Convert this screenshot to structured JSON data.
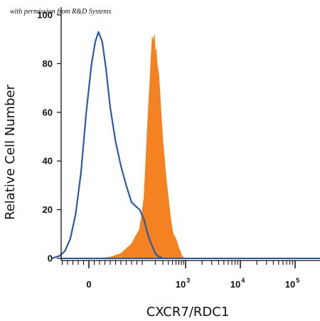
{
  "watermark": "with permission from R&D Systems",
  "chart_data": {
    "type": "area",
    "title": "",
    "xlabel": "CXCR7/RDC1",
    "ylabel": "Relative Cell Number",
    "x_scale": "biexponential",
    "x_tick_labels": [
      {
        "value": 0,
        "base": "0",
        "exp": ""
      },
      {
        "value": 1000,
        "base": "10",
        "exp": "3"
      },
      {
        "value": 10000,
        "base": "10",
        "exp": "4"
      },
      {
        "value": 100000,
        "base": "10",
        "exp": "5"
      }
    ],
    "y_ticks": [
      0,
      20,
      40,
      60,
      80,
      100
    ],
    "ylim": [
      0,
      100
    ],
    "grid": false,
    "legend": "none",
    "series": [
      {
        "style": "filled",
        "color": "#f58220",
        "points": [
          [
            20,
            0
          ],
          [
            40,
            0.5
          ],
          [
            60,
            2
          ],
          [
            80,
            6
          ],
          [
            95,
            12
          ],
          [
            110,
            25
          ],
          [
            125,
            45
          ],
          [
            140,
            63
          ],
          [
            150,
            72
          ],
          [
            160,
            83
          ],
          [
            170,
            91
          ],
          [
            180,
            89
          ],
          [
            190,
            92
          ],
          [
            200,
            85
          ],
          [
            210,
            86
          ],
          [
            220,
            80
          ],
          [
            240,
            76
          ],
          [
            260,
            66
          ],
          [
            280,
            56
          ],
          [
            300,
            48
          ],
          [
            330,
            40
          ],
          [
            360,
            32
          ],
          [
            400,
            25
          ],
          [
            440,
            18
          ],
          [
            480,
            13
          ],
          [
            520,
            10
          ],
          [
            560,
            9
          ],
          [
            600,
            8
          ],
          [
            650,
            6
          ],
          [
            700,
            4
          ],
          [
            750,
            3
          ],
          [
            800,
            1.5
          ],
          [
            850,
            0.8
          ],
          [
            900,
            0.3
          ],
          [
            950,
            0
          ]
        ]
      },
      {
        "style": "outline",
        "color": "#2a5ba8",
        "points": [
          [
            -70,
            0
          ],
          [
            -55,
            1
          ],
          [
            -45,
            3
          ],
          [
            -35,
            8
          ],
          [
            -25,
            18
          ],
          [
            -15,
            35
          ],
          [
            -5,
            60
          ],
          [
            5,
            80
          ],
          [
            12,
            89
          ],
          [
            18,
            93
          ],
          [
            25,
            89
          ],
          [
            32,
            78
          ],
          [
            40,
            62
          ],
          [
            50,
            48
          ],
          [
            60,
            38
          ],
          [
            70,
            30
          ],
          [
            80,
            23
          ],
          [
            95,
            20
          ],
          [
            110,
            16
          ],
          [
            125,
            12
          ],
          [
            140,
            9
          ],
          [
            160,
            6
          ],
          [
            180,
            4
          ],
          [
            200,
            2
          ],
          [
            230,
            1
          ],
          [
            260,
            0.5
          ],
          [
            300,
            0
          ]
        ]
      }
    ]
  }
}
